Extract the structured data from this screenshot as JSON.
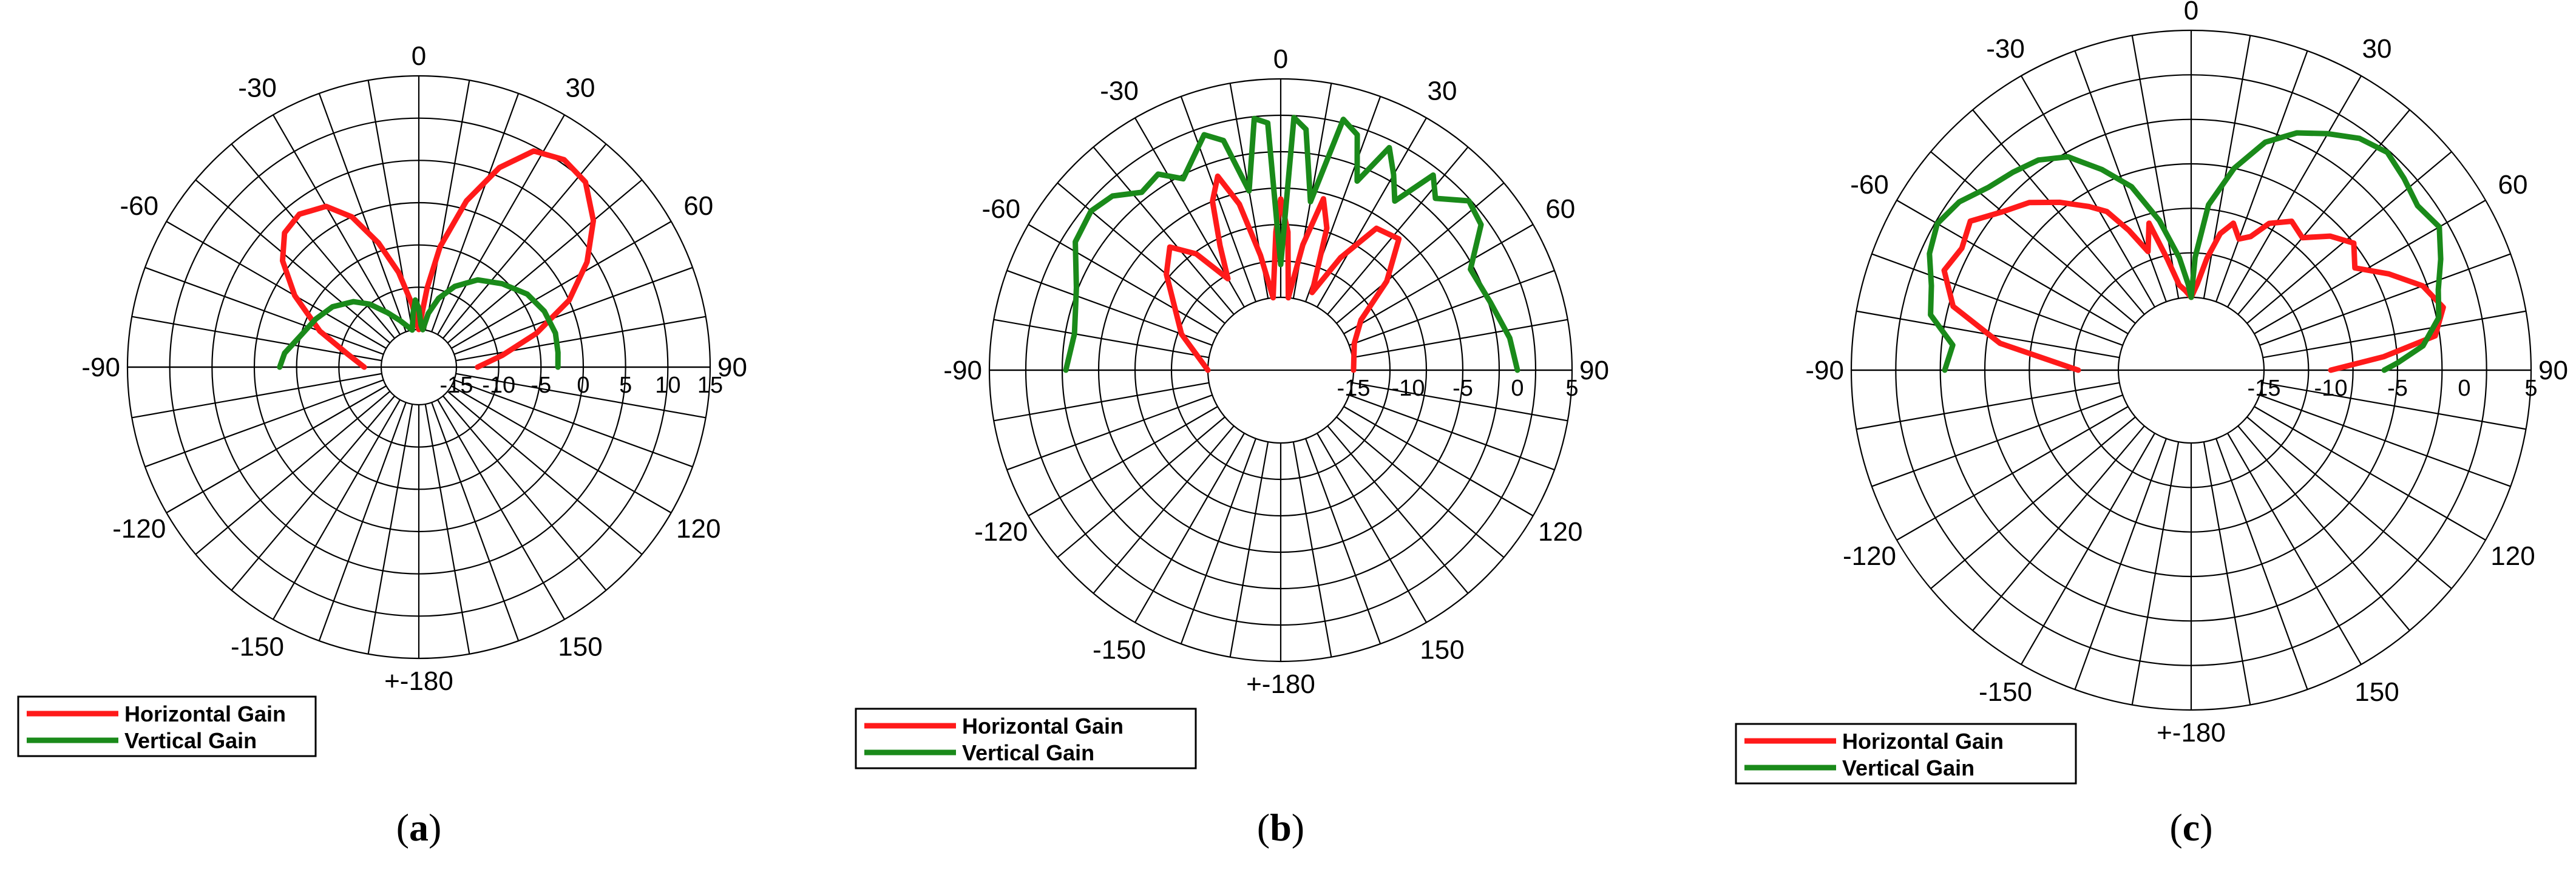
{
  "chart_data": [
    {
      "type": "polar-line",
      "panel": "a",
      "caption_open": "(",
      "caption_letter": "a",
      "caption_close": ")",
      "angle_tick_labels": [
        "0",
        "30",
        "60",
        "90",
        "120",
        "150",
        "+-180",
        "-150",
        "-120",
        "-90",
        "-60",
        "-30"
      ],
      "angle_tick_values": [
        0,
        30,
        60,
        90,
        120,
        150,
        180,
        -150,
        -120,
        -90,
        -60,
        -30
      ],
      "radial_range": [
        -15,
        15
      ],
      "radial_tick_labels": [
        "-15",
        "-10",
        "-5",
        "0",
        "5",
        "10",
        "15"
      ],
      "grid": true,
      "legend_placement": "bottom-left",
      "series": [
        {
          "name": "Horizontal Gain",
          "color": "#ff1a1a",
          "points": [
            [
              -90,
              -13
            ],
            [
              -80,
              -11
            ],
            [
              -70,
              -7
            ],
            [
              -60,
              -2.5
            ],
            [
              -52,
              1
            ],
            [
              -45,
              3
            ],
            [
              -38,
              3.5
            ],
            [
              -30,
              2.5
            ],
            [
              -24,
              0
            ],
            [
              -18,
              -4
            ],
            [
              -12,
              -8
            ],
            [
              -6,
              -12
            ],
            [
              -2,
              -14.5
            ],
            [
              0,
              -15
            ],
            [
              2,
              -14
            ],
            [
              6,
              -10
            ],
            [
              10,
              -5
            ],
            [
              16,
              1
            ],
            [
              22,
              6
            ],
            [
              28,
              9.5
            ],
            [
              35,
              10.5
            ],
            [
              42,
              10
            ],
            [
              50,
              7.5
            ],
            [
              58,
              4
            ],
            [
              66,
              0
            ],
            [
              74,
              -5
            ],
            [
              82,
              -9.5
            ],
            [
              90,
              -12.5
            ]
          ]
        },
        {
          "name": "Vertical Gain",
          "color": "#1a8a1a",
          "points": [
            [
              -90,
              -3
            ],
            [
              -84,
              -3.5
            ],
            [
              -75,
              -5
            ],
            [
              -65,
              -6
            ],
            [
              -55,
              -7
            ],
            [
              -45,
              -8.5
            ],
            [
              -38,
              -10
            ],
            [
              -30,
              -12
            ],
            [
              -22,
              -13.5
            ],
            [
              -15,
              -14.5
            ],
            [
              -10,
              -15
            ],
            [
              -6,
              -13
            ],
            [
              -3,
              -11.5
            ],
            [
              0,
              -12.5
            ],
            [
              3,
              -14.5
            ],
            [
              6,
              -15
            ],
            [
              10,
              -13
            ],
            [
              16,
              -11
            ],
            [
              24,
              -9
            ],
            [
              34,
              -7
            ],
            [
              45,
              -5.5
            ],
            [
              56,
              -4
            ],
            [
              66,
              -3.2
            ],
            [
              76,
              -2.8
            ],
            [
              84,
              -2.9
            ],
            [
              90,
              -3
            ]
          ]
        }
      ]
    },
    {
      "type": "polar-line",
      "panel": "b",
      "caption_open": "(",
      "caption_letter": "b",
      "caption_close": ")",
      "angle_tick_labels": [
        "0",
        "30",
        "60",
        "90",
        "120",
        "150",
        "+-180",
        "-150",
        "-120",
        "-90",
        "-60",
        "-30"
      ],
      "angle_tick_values": [
        0,
        30,
        60,
        90,
        120,
        150,
        180,
        -150,
        -120,
        -90,
        -60,
        -30
      ],
      "radial_range": [
        -15,
        5
      ],
      "radial_tick_labels": [
        "-15",
        "-10",
        "-5",
        "0",
        "5"
      ],
      "grid": true,
      "legend_placement": "bottom-left",
      "series": [
        {
          "name": "Horizontal Gain",
          "color": "#ff1a1a",
          "points": [
            [
              -90,
              -15
            ],
            [
              -70,
              -12
            ],
            [
              -50,
              -8
            ],
            [
              -42,
              -6.5
            ],
            [
              -36,
              -8.5
            ],
            [
              -30,
              -12
            ],
            [
              -26,
              -9
            ],
            [
              -22,
              -5
            ],
            [
              -18,
              -3
            ],
            [
              -14,
              -6
            ],
            [
              -10,
              -11
            ],
            [
              -6,
              -15
            ],
            [
              -2,
              -9
            ],
            [
              0,
              -6
            ],
            [
              3,
              -9
            ],
            [
              6,
              -15
            ],
            [
              10,
              -10
            ],
            [
              14,
              -5.5
            ],
            [
              18,
              -8
            ],
            [
              22,
              -14
            ],
            [
              28,
              -10
            ],
            [
              34,
              -6
            ],
            [
              42,
              -5.5
            ],
            [
              50,
              -9
            ],
            [
              58,
              -13
            ],
            [
              70,
              -14.5
            ],
            [
              90,
              -15
            ]
          ]
        },
        {
          "name": "Vertical Gain",
          "color": "#1a8a1a",
          "points": [
            [
              -90,
              -2
            ],
            [
              -80,
              -2.5
            ],
            [
              -68,
              -1.5
            ],
            [
              -58,
              0.5
            ],
            [
              -50,
              1
            ],
            [
              -44,
              0.5
            ],
            [
              -38,
              -1
            ],
            [
              -32,
              -0.5
            ],
            [
              -27,
              -2
            ],
            [
              -22,
              -0.5
            ],
            [
              -18,
              1
            ],
            [
              -14,
              0
            ],
            [
              -10,
              -5
            ],
            [
              -6,
              1.5
            ],
            [
              -3,
              1
            ],
            [
              0,
              -12
            ],
            [
              3,
              1.5
            ],
            [
              6,
              0.5
            ],
            [
              10,
              -6
            ],
            [
              14,
              2
            ],
            [
              18,
              1
            ],
            [
              22,
              -3
            ],
            [
              26,
              1
            ],
            [
              30,
              -1
            ],
            [
              34,
              -3
            ],
            [
              38,
              1
            ],
            [
              42,
              -0.5
            ],
            [
              48,
              1.5
            ],
            [
              54,
              1
            ],
            [
              62,
              -2
            ],
            [
              72,
              -1.5
            ],
            [
              82,
              -0.5
            ],
            [
              90,
              0
            ]
          ]
        }
      ]
    },
    {
      "type": "polar-line",
      "panel": "c",
      "caption_open": "(",
      "caption_letter": "c",
      "caption_close": ")",
      "angle_tick_labels": [
        "0",
        "30",
        "60",
        "90",
        "120",
        "150",
        "+-180",
        "-150",
        "-120",
        "-90",
        "-60",
        "-30"
      ],
      "angle_tick_values": [
        0,
        30,
        60,
        90,
        120,
        150,
        180,
        -150,
        -120,
        -90,
        -60,
        -30
      ],
      "radial_range": [
        -15,
        5
      ],
      "radial_tick_labels": [
        "-15",
        "-10",
        "-5",
        "0",
        "5"
      ],
      "grid": true,
      "legend_placement": "bottom-left",
      "series": [
        {
          "name": "Horizontal Gain",
          "color": "#ff1a1a",
          "points": [
            [
              -90,
              -12
            ],
            [
              -82,
              -6
            ],
            [
              -75,
              -2
            ],
            [
              -68,
              -0.5
            ],
            [
              -62,
              -1
            ],
            [
              -56,
              -0.5
            ],
            [
              -50,
              -2
            ],
            [
              -44,
              -3
            ],
            [
              -38,
              -4.5
            ],
            [
              -32,
              -6
            ],
            [
              -28,
              -7
            ],
            [
              -24,
              -9
            ],
            [
              -20,
              -11
            ],
            [
              -16,
              -9
            ],
            [
              -12,
              -12
            ],
            [
              -8,
              -14
            ],
            [
              -4,
              -14.5
            ],
            [
              0,
              -15
            ],
            [
              4,
              -14
            ],
            [
              8,
              -12
            ],
            [
              12,
              -10
            ],
            [
              16,
              -9
            ],
            [
              20,
              -10
            ],
            [
              24,
              -9.5
            ],
            [
              28,
              -8
            ],
            [
              34,
              -7
            ],
            [
              40,
              -7.5
            ],
            [
              46,
              -6
            ],
            [
              52,
              -5
            ],
            [
              58,
              -6
            ],
            [
              64,
              -4
            ],
            [
              70,
              -2
            ],
            [
              76,
              -1
            ],
            [
              82,
              -2
            ],
            [
              86,
              -6
            ],
            [
              90,
              -10
            ]
          ]
        },
        {
          "name": "Vertical Gain",
          "color": "#1a8a1a",
          "points": [
            [
              -90,
              -2
            ],
            [
              -84,
              -2.5
            ],
            [
              -78,
              -0.5
            ],
            [
              -72,
              0
            ],
            [
              -66,
              1
            ],
            [
              -60,
              1.5
            ],
            [
              -54,
              1
            ],
            [
              -48,
              0
            ],
            [
              -42,
              -0.5
            ],
            [
              -36,
              -1
            ],
            [
              -30,
              -2
            ],
            [
              -24,
              -4
            ],
            [
              -18,
              -6
            ],
            [
              -12,
              -9
            ],
            [
              -6,
              -12
            ],
            [
              -2,
              -14
            ],
            [
              0,
              -15
            ],
            [
              2,
              -12
            ],
            [
              6,
              -8
            ],
            [
              12,
              -5
            ],
            [
              18,
              -2.5
            ],
            [
              24,
              -1
            ],
            [
              30,
              0
            ],
            [
              36,
              1
            ],
            [
              42,
              1.5
            ],
            [
              48,
              1
            ],
            [
              54,
              0.5
            ],
            [
              60,
              1
            ],
            [
              66,
              0
            ],
            [
              72,
              -1
            ],
            [
              78,
              -1.5
            ],
            [
              84,
              -3
            ],
            [
              88,
              -5
            ],
            [
              90,
              -6
            ]
          ]
        }
      ]
    }
  ]
}
